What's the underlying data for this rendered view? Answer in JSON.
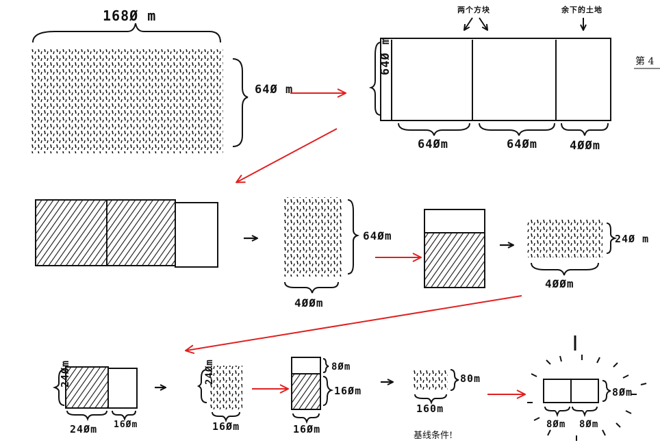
{
  "top_row": {
    "total_width_label": "168Ø m",
    "field_height_label": "64Ø m",
    "blocks_side_label": "64Ø m",
    "annotation_two_blocks": "两个方块",
    "annotation_remainder": "余下的土地",
    "block_width_label_1": "64Øm",
    "block_width_label_2": "64Øm",
    "remainder_width_label": "4ØØm"
  },
  "edge_text": "第 4",
  "middle_row": {
    "remainder_height_label": "64Øm",
    "remainder_width_label": "4ØØm",
    "sub_height_label": "24Ø m",
    "sub_width_label": "4ØØm"
  },
  "bottom_row": {
    "left_height_label": "24Øm",
    "left_width_label": "24Øm",
    "left_remainder_label": "16Øm",
    "strip_height_label": "24Øm",
    "strip_width_label": "16Øm",
    "split_top_label": "8Øm",
    "split_bottom_label": "16Øm",
    "split_width_label": "16Øm",
    "small_height_label": "80m",
    "small_width_label": "160m",
    "base_case_label": "基线条件!",
    "final_height_label": "8Øm",
    "final_width_label_1": "8Øm",
    "final_width_label_2": "8Øm"
  },
  "colors": {
    "arrow": "#e02020",
    "ink": "#111111"
  }
}
